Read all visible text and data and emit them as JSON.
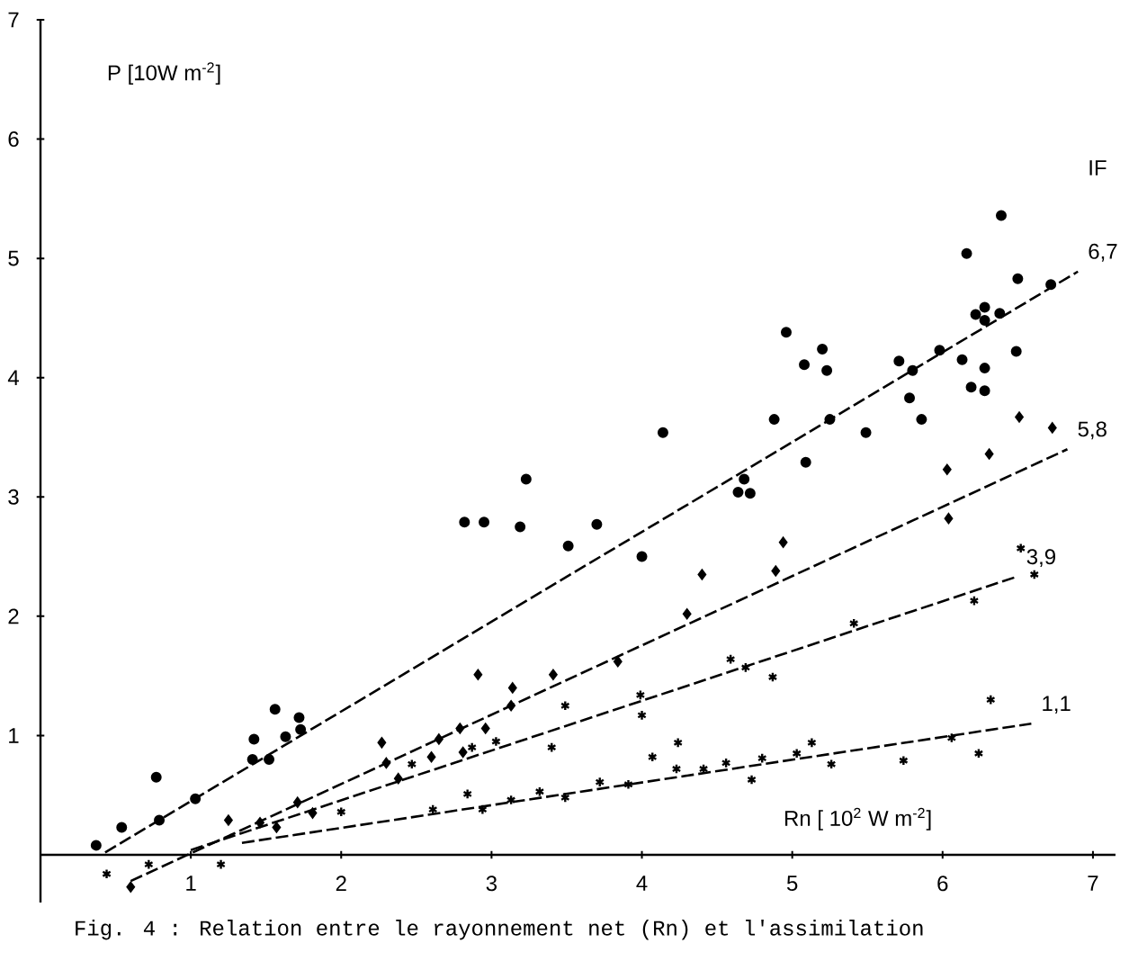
{
  "chart_data": {
    "type": "scatter",
    "xlabel": "Rn [ 10$^{2}$ W m$^{-2}$]",
    "ylabel": "P [10W m$^{-2}$]",
    "legend_title": "IF",
    "xlim": [
      0,
      7.15
    ],
    "ylim": [
      -0.4,
      7
    ],
    "xticks": [
      1,
      2,
      3,
      4,
      5,
      6,
      7
    ],
    "yticks": [
      1,
      2,
      3,
      4,
      5,
      6,
      7
    ],
    "annotations": [
      "Fig. 4 :  Relation entre le rayonnement net (Rn) et l'assimilation"
    ],
    "series": [
      {
        "marker": "circle",
        "color": "#000000",
        "x": [
          0.37,
          0.54,
          0.77,
          0.79,
          1.03,
          1.42,
          1.41,
          1.52,
          1.56,
          1.63,
          1.72,
          1.73,
          2.82,
          2.95,
          3.19,
          3.23,
          3.51,
          3.7,
          4.0,
          4.14,
          4.68,
          4.64,
          4.72,
          4.88,
          4.96,
          5.08,
          5.2,
          5.23,
          5.25,
          5.09,
          5.49,
          5.71,
          5.8,
          5.78,
          5.86,
          5.98,
          6.13,
          6.19,
          6.28,
          6.28,
          6.16,
          6.22,
          6.28,
          6.28,
          6.38,
          6.5,
          6.49,
          6.72,
          6.39
        ],
        "values": [
          0.08,
          0.23,
          0.65,
          0.29,
          0.47,
          0.97,
          0.8,
          0.8,
          1.22,
          0.99,
          1.15,
          1.05,
          2.79,
          2.79,
          2.75,
          3.15,
          2.59,
          2.77,
          2.5,
          3.54,
          3.15,
          3.04,
          3.03,
          3.65,
          4.38,
          4.11,
          4.24,
          4.06,
          3.65,
          3.29,
          3.54,
          4.14,
          4.06,
          3.83,
          3.65,
          4.23,
          4.15,
          3.92,
          3.89,
          4.08,
          5.04,
          4.53,
          4.59,
          4.48,
          4.54,
          4.83,
          4.22,
          4.78,
          5.36
        ]
      },
      {
        "type": "scatter",
        "marker": "diamond",
        "color": "#000000",
        "x": [
          0.6,
          1.25,
          1.46,
          1.57,
          1.71,
          1.81,
          2.27,
          2.3,
          2.38,
          2.6,
          2.65,
          2.79,
          2.81,
          2.96,
          2.91,
          3.14,
          3.13,
          3.41,
          3.84,
          4.3,
          4.4,
          4.89,
          4.94,
          6.04,
          6.03,
          6.31,
          6.51,
          6.73
        ],
        "values": [
          -0.27,
          0.29,
          0.27,
          0.23,
          0.44,
          0.35,
          0.94,
          0.77,
          0.64,
          0.82,
          0.97,
          1.06,
          0.86,
          1.06,
          1.51,
          1.4,
          1.25,
          1.51,
          1.62,
          2.02,
          2.35,
          2.38,
          2.62,
          2.82,
          3.23,
          3.36,
          3.67,
          3.58
        ]
      },
      {
        "type": "scatter",
        "marker": "cross",
        "color": "#000000",
        "x": [
          0.44,
          2.0,
          2.47,
          2.87,
          3.03,
          3.4,
          3.49,
          3.99,
          4.0,
          4.59,
          4.69,
          4.87,
          5.41,
          6.21,
          6.52,
          6.61
        ],
        "values": [
          -0.16,
          0.36,
          0.76,
          0.9,
          0.95,
          0.9,
          1.25,
          1.34,
          1.17,
          1.64,
          1.57,
          1.49,
          1.94,
          2.13,
          2.57,
          2.35
        ]
      },
      {
        "type": "scatter",
        "marker": "cross",
        "color": "#000000",
        "x": [
          0.72,
          1.2,
          2.61,
          2.84,
          2.94,
          3.13,
          3.32,
          3.49,
          3.72,
          3.91,
          4.07,
          4.24,
          4.23,
          4.41,
          4.56,
          4.8,
          4.73,
          5.03,
          5.13,
          5.26,
          5.74,
          6.06,
          6.24,
          6.32
        ],
        "values": [
          -0.08,
          -0.08,
          0.38,
          0.51,
          0.38,
          0.46,
          0.53,
          0.48,
          0.61,
          0.59,
          0.82,
          0.94,
          0.72,
          0.72,
          0.77,
          0.81,
          0.63,
          0.85,
          0.94,
          0.76,
          0.79,
          0.98,
          0.85,
          1.3
        ]
      },
      {
        "type": "line",
        "name": "6,7",
        "line_style": "dashed",
        "color": "#000000",
        "x": [
          0.43,
          6.9
        ],
        "values": [
          0.02,
          4.89
        ]
      },
      {
        "type": "line",
        "name": "5,8",
        "line_style": "dashed",
        "color": "#000000",
        "x": [
          0.6,
          6.83
        ],
        "values": [
          -0.22,
          3.4
        ]
      },
      {
        "type": "line",
        "name": "3,9",
        "line_style": "dashed",
        "color": "#000000",
        "x": [
          1.0,
          6.49
        ],
        "values": [
          0.04,
          2.33
        ]
      },
      {
        "type": "line",
        "name": "1,1",
        "line_style": "dashed",
        "color": "#000000",
        "x": [
          1.34,
          6.59
        ],
        "values": [
          0.1,
          1.1
        ]
      }
    ]
  }
}
